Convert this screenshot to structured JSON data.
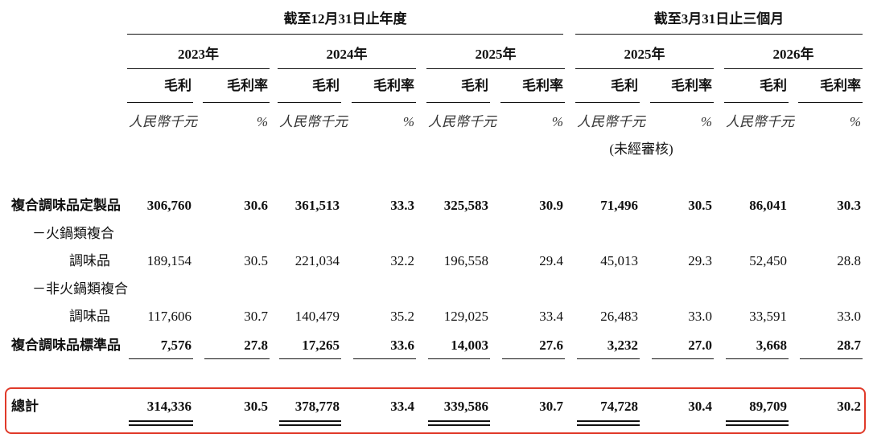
{
  "header": {
    "period_groups": [
      "截至12月31日止年度",
      "截至3月31日止三個月"
    ],
    "years": [
      "2023年",
      "2024年",
      "2025年",
      "2025年",
      "2026年"
    ],
    "column_headers": [
      "毛利",
      "毛利率",
      "毛利",
      "毛利率",
      "毛利",
      "毛利率",
      "毛利",
      "毛利率",
      "毛利",
      "毛利率"
    ],
    "units": [
      "人民幣千元",
      "%",
      "人民幣千元",
      "%",
      "人民幣千元",
      "%",
      "人民幣千元",
      "%",
      "人民幣千元",
      "%"
    ],
    "unaudited_note": "(未經審核)"
  },
  "table": {
    "rows": [
      {
        "label": "複合調味品定製品",
        "cells": [
          "306,760",
          "30.6",
          "361,513",
          "33.3",
          "325,583",
          "30.9",
          "71,496",
          "30.5",
          "86,041",
          "30.3"
        ]
      },
      {
        "label": "－火鍋類複合"
      },
      {
        "label": "調味品",
        "cells": [
          "189,154",
          "30.5",
          "221,034",
          "32.2",
          "196,558",
          "29.4",
          "45,013",
          "29.3",
          "52,450",
          "28.8"
        ]
      },
      {
        "label": "－非火鍋類複合"
      },
      {
        "label": "調味品",
        "cells": [
          "117,606",
          "30.7",
          "140,479",
          "35.2",
          "129,025",
          "33.4",
          "26,483",
          "33.0",
          "33,591",
          "33.0"
        ]
      },
      {
        "label": "複合調味品標準品",
        "cells": [
          "7,576",
          "27.8",
          "17,265",
          "33.6",
          "14,003",
          "27.6",
          "3,232",
          "27.0",
          "3,668",
          "28.7"
        ]
      },
      {
        "label": "總計",
        "cells": [
          "314,336",
          "30.5",
          "378,778",
          "33.4",
          "339,586",
          "30.7",
          "74,728",
          "30.4",
          "89,709",
          "30.2"
        ]
      }
    ]
  }
}
